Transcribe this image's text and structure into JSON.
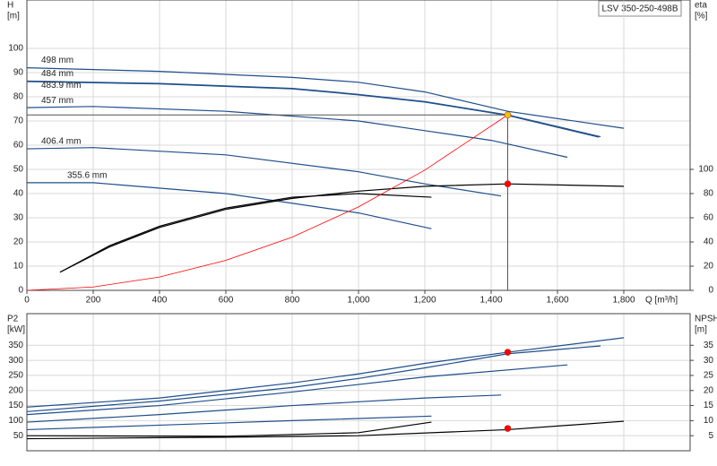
{
  "chart_data": [
    {
      "type": "line",
      "title": "LSV 350-250-498B",
      "ylabel": "H",
      "yunit": "[m]",
      "y2label": "eta",
      "y2unit": "[%]",
      "xlabel": "Q [m³/h]",
      "xlim": [
        0,
        2000
      ],
      "xticks": [
        0,
        200,
        400,
        600,
        800,
        {
          "value": 1000,
          "label": "1,000"
        },
        {
          "value": 1200,
          "label": "1,200"
        },
        {
          "value": 1400,
          "label": "1,400"
        },
        {
          "value": 1600,
          "label": "1,600"
        },
        {
          "value": 1800,
          "label": "1,800"
        }
      ],
      "ylim": [
        0,
        120
      ],
      "yticks": [
        0,
        10,
        20,
        30,
        40,
        50,
        60,
        70,
        80,
        90,
        100
      ],
      "y2lim": [
        0,
        240
      ],
      "y2ticks": [
        0,
        20,
        40,
        60,
        80,
        100
      ],
      "grid": true,
      "series": [
        {
          "name": "498 mm",
          "color": "#1f4e8c",
          "x": [
            0,
            400,
            800,
            1000,
            1200,
            1450,
            1800
          ],
          "values": [
            92,
            90.5,
            88,
            86,
            82,
            74,
            67
          ]
        },
        {
          "name": "484 mm",
          "color": "#1f4e8c",
          "x": [
            0,
            400,
            800,
            1000,
            1200,
            1450,
            1730
          ],
          "values": [
            86.5,
            85.5,
            83.5,
            81,
            78,
            72.5,
            63.5
          ]
        },
        {
          "name": "483.9 mm",
          "color": "#1f4e8c",
          "x": [
            0,
            400,
            800,
            1000,
            1200,
            1450,
            1725
          ],
          "values": [
            86.3,
            85.3,
            83.3,
            80.8,
            77.8,
            72.3,
            63.3
          ]
        },
        {
          "name": "457 mm",
          "color": "#1f4e8c",
          "x": [
            0,
            200,
            600,
            1000,
            1200,
            1400,
            1630
          ],
          "values": [
            75.5,
            76,
            74,
            70,
            66,
            62,
            55
          ]
        },
        {
          "name": "406.4 mm",
          "color": "#1f4e8c",
          "x": [
            0,
            200,
            600,
            1000,
            1200,
            1430
          ],
          "values": [
            58.5,
            59,
            56,
            49,
            44,
            39
          ]
        },
        {
          "name": "355.6 mm",
          "color": "#1f4e8c",
          "x": [
            0,
            200,
            600,
            1000,
            1220
          ],
          "values": [
            44.5,
            44.5,
            40,
            32,
            25.5
          ]
        },
        {
          "color": "#000000",
          "axis": "y2",
          "x": [
            100,
            250,
            400,
            600,
            800,
            1000,
            1200,
            1450,
            1800
          ],
          "values": [
            15,
            36,
            52,
            67,
            76,
            82,
            86,
            88,
            86
          ]
        },
        {
          "color": "#000000",
          "axis": "y2",
          "x": [
            100,
            250,
            400,
            600,
            800,
            1000,
            1220
          ],
          "values": [
            15,
            37,
            53,
            68,
            77,
            80,
            77
          ]
        },
        {
          "color": "#ff0000",
          "x": [
            0,
            200,
            400,
            600,
            800,
            1000,
            1200,
            1450
          ],
          "values": [
            0,
            1.4,
            5.5,
            12.4,
            22,
            34.5,
            49.7,
            72.5
          ]
        }
      ],
      "markers": [
        {
          "x": 1450,
          "y": 72.5,
          "color": "#f5c400"
        },
        {
          "x": 1450,
          "y": 88,
          "axis": "y2",
          "color": "#ff0000"
        }
      ]
    },
    {
      "type": "line",
      "ylabel": "P2",
      "yunit": "[kW]",
      "y2label": "NPSH",
      "y2unit": "[m]",
      "xlim": [
        0,
        2000
      ],
      "ylim": [
        0,
        455
      ],
      "yticks": [
        50,
        100,
        150,
        200,
        250,
        300,
        350
      ],
      "y2lim": [
        0,
        45.5
      ],
      "y2ticks": [
        5,
        10,
        15,
        20,
        25,
        30,
        35
      ],
      "grid": true,
      "series": [
        {
          "color": "#1f4e8c",
          "x": [
            0,
            400,
            800,
            1000,
            1200,
            1450,
            1800
          ],
          "values": [
            145,
            175,
            225,
            255,
            290,
            327,
            375
          ]
        },
        {
          "color": "#1f4e8c",
          "x": [
            0,
            400,
            800,
            1000,
            1200,
            1450,
            1730
          ],
          "values": [
            130,
            165,
            210,
            240,
            275,
            322,
            348
          ]
        },
        {
          "color": "#1f4e8c",
          "x": [
            0,
            400,
            800,
            1200,
            1630
          ],
          "values": [
            120,
            150,
            195,
            245,
            285
          ]
        },
        {
          "color": "#1f4e8c",
          "x": [
            0,
            400,
            800,
            1200,
            1430
          ],
          "values": [
            95,
            120,
            150,
            175,
            185
          ]
        },
        {
          "color": "#1f4e8c",
          "x": [
            0,
            400,
            800,
            1220
          ],
          "values": [
            70,
            85,
            100,
            115
          ]
        },
        {
          "color": "#000000",
          "axis": "y2",
          "x": [
            0,
            600,
            1000,
            1450,
            1800
          ],
          "values": [
            4,
            4.5,
            5,
            7,
            9.8
          ]
        },
        {
          "color": "#000000",
          "axis": "y2",
          "x": [
            0,
            600,
            1000,
            1220
          ],
          "values": [
            5,
            4.8,
            6,
            9.5
          ]
        }
      ],
      "markers": [
        {
          "x": 1450,
          "y": 327,
          "color": "#ff0000"
        },
        {
          "x": 1450,
          "y": 7.4,
          "axis": "y2",
          "color": "#ff0000"
        }
      ]
    }
  ]
}
